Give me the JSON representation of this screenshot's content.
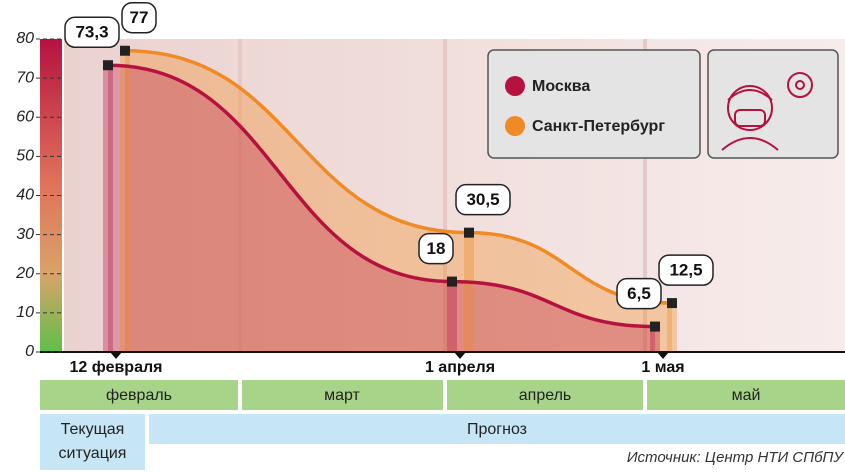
{
  "chart_data": {
    "type": "line",
    "categories": [
      "12 февраля",
      "1 апреля",
      "1 мая"
    ],
    "series": [
      {
        "name": "Москва",
        "color": "#b5123f",
        "values": [
          73.3,
          18,
          6.5
        ],
        "value_labels": [
          "73,3",
          "18",
          "6,5"
        ]
      },
      {
        "name": "Санкт-Петербург",
        "color": "#f08a24",
        "values": [
          77,
          30.5,
          12.5
        ],
        "value_labels": [
          "77",
          "30,5",
          "12,5"
        ]
      }
    ],
    "ylim": [
      0,
      80
    ],
    "yticks": [
      0,
      10,
      20,
      30,
      40,
      50,
      60,
      70,
      80
    ],
    "grid": false,
    "months": [
      "февраль",
      "март",
      "апрель",
      "май"
    ],
    "periods": [
      "Текущая ситуация",
      "Прогноз"
    ],
    "source": "Источник: Центр НТИ СПбПУ"
  }
}
